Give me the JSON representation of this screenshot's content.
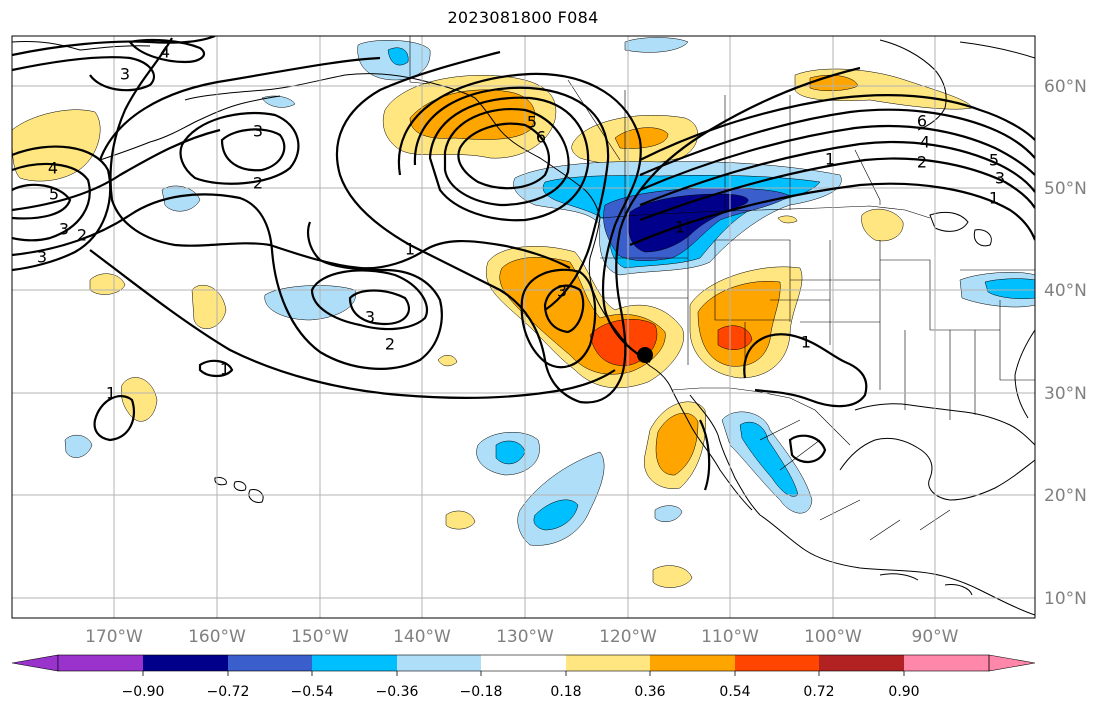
{
  "title": "2023081800 F084",
  "longitude_labels": [
    "170°W",
    "160°W",
    "150°W",
    "140°W",
    "130°W",
    "120°W",
    "110°W",
    "100°W",
    "90°W"
  ],
  "latitude_labels": [
    "60°N",
    "50°N",
    "40°N",
    "30°N",
    "20°N",
    "10°N"
  ],
  "colorbar": {
    "tick_labels": [
      "−0.90",
      "−0.72",
      "−0.54",
      "−0.36",
      "−0.18",
      "0.18",
      "0.36",
      "0.54",
      "0.72",
      "0.90"
    ],
    "colors": [
      "#9933cc",
      "#00008b",
      "#3a5fcd",
      "#00bfff",
      "#afdff8",
      "#ffffff",
      "#ffe680",
      "#ffa500",
      "#ff4500",
      "#b22222",
      "#ff88aa"
    ]
  },
  "contour_labels": [
    "3",
    "4",
    "3",
    "5",
    "4",
    "3",
    "2",
    "3",
    "2",
    "5",
    "6",
    "1",
    "1",
    "3",
    "3",
    "2",
    "6",
    "5",
    "4",
    "3",
    "2",
    "1",
    "1",
    "1",
    "1",
    "1"
  ],
  "marker": "filled black circle near 34°N 118°W"
}
